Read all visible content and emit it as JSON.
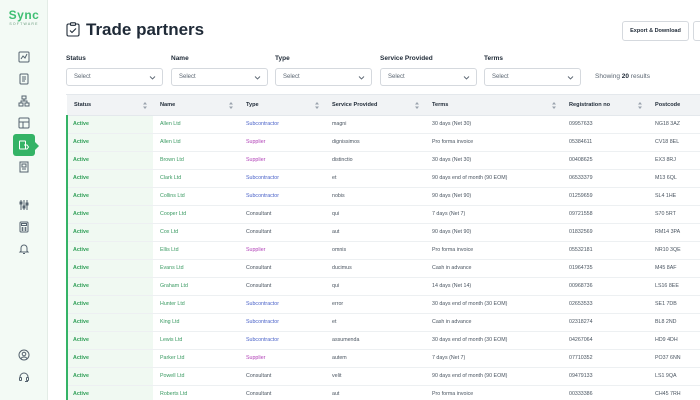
{
  "app": {
    "logo": "Sync",
    "logo_sub": "SOFTWARE"
  },
  "sidebar": {
    "items": [
      {
        "icon": "chart-icon"
      },
      {
        "icon": "document-icon"
      },
      {
        "icon": "network-icon"
      },
      {
        "icon": "layout-icon"
      },
      {
        "icon": "handshake-icon",
        "active": true
      },
      {
        "icon": "building-icon"
      },
      {
        "icon": "sliders-icon"
      },
      {
        "icon": "calculator-icon"
      },
      {
        "icon": "bell-icon"
      },
      {
        "icon": "user-icon"
      },
      {
        "icon": "headset-icon"
      }
    ]
  },
  "header": {
    "title": "Trade partners",
    "export_label": "Export & Download"
  },
  "filters": [
    {
      "label": "Status",
      "placeholder": "Select"
    },
    {
      "label": "Name",
      "placeholder": "Select"
    },
    {
      "label": "Type",
      "placeholder": "Select"
    },
    {
      "label": "Service Provided",
      "placeholder": "Select"
    },
    {
      "label": "Terms",
      "placeholder": "Select"
    }
  ],
  "results": {
    "prefix": "Showing",
    "count": "20",
    "suffix": "results"
  },
  "table": {
    "columns": [
      "Status",
      "Name",
      "Type",
      "Service Provided",
      "Terms",
      "Registration no",
      "Postcode"
    ],
    "rows": [
      [
        "Active",
        "Allen Ltd",
        "Subcontractor",
        "magni",
        "30 days (Net 30)",
        "09957633",
        "NG18 3AZ"
      ],
      [
        "Active",
        "Allen Ltd",
        "Supplier",
        "dignissimos",
        "Pro forma invoice",
        "05384611",
        "CV18 8EL"
      ],
      [
        "Active",
        "Brown Ltd",
        "Supplier",
        "distinctio",
        "30 days (Net 30)",
        "00408625",
        "EX3 8RJ"
      ],
      [
        "Active",
        "Clark Ltd",
        "Subcontractor",
        "et",
        "90 days end of month (90 EOM)",
        "06533379",
        "M13 6QL"
      ],
      [
        "Active",
        "Collins Ltd",
        "Subcontractor",
        "nobis",
        "90 days (Net 90)",
        "01259659",
        "SL4 1HE"
      ],
      [
        "Active",
        "Cooper Ltd",
        "Consultant",
        "qui",
        "7 days (Net 7)",
        "09721558",
        "S70 5RT"
      ],
      [
        "Active",
        "Cox Ltd",
        "Consultant",
        "aut",
        "90 days (Net 90)",
        "01832569",
        "RM14 3PA"
      ],
      [
        "Active",
        "Ellis Ltd",
        "Supplier",
        "omnis",
        "Pro forma invoice",
        "05532181",
        "NR10 3QE"
      ],
      [
        "Active",
        "Evans Ltd",
        "Consultant",
        "ducimus",
        "Cash in advance",
        "01964735",
        "M45 8AF"
      ],
      [
        "Active",
        "Graham Ltd",
        "Consultant",
        "qui",
        "14 days (Net 14)",
        "00968736",
        "LS16 8EE"
      ],
      [
        "Active",
        "Hunter Ltd",
        "Subcontractor",
        "error",
        "30 days end of month (30 EOM)",
        "02653533",
        "SE1 7DB"
      ],
      [
        "Active",
        "King Ltd",
        "Subcontractor",
        "et",
        "Cash in advance",
        "02318274",
        "BL8 2ND"
      ],
      [
        "Active",
        "Lewis Ltd",
        "Subcontractor",
        "assumenda",
        "30 days end of month (30 EOM)",
        "04267064",
        "HD9 4DH"
      ],
      [
        "Active",
        "Parker Ltd",
        "Supplier",
        "autem",
        "7 days (Net 7)",
        "07710352",
        "PO37 6NN"
      ],
      [
        "Active",
        "Powell Ltd",
        "Consultant",
        "velit",
        "90 days end of month (90 EOM)",
        "09479133",
        "LS1 9QA"
      ],
      [
        "Active",
        "Roberts Ltd",
        "Consultant",
        "aut",
        "Pro forma invoice",
        "00333386",
        "CH45 7RH"
      ]
    ]
  },
  "colors": {
    "accent": "#34b366",
    "subcontractor": "#4b63c9",
    "supplier": "#b243b8"
  }
}
